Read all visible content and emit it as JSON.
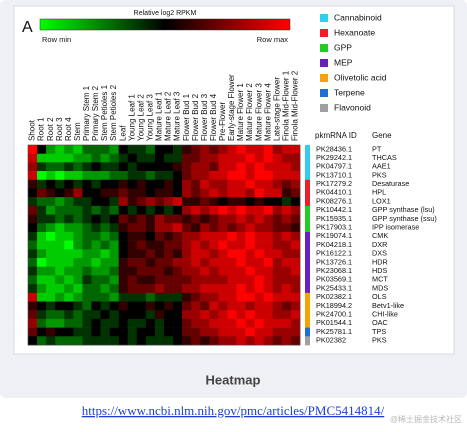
{
  "panel_label": "A",
  "chart_data": {
    "type": "heatmap",
    "colorbar": {
      "title": "Relative log2 RPKM",
      "min_label": "Row min",
      "max_label": "Row max"
    },
    "colors": {
      "low": "#00ff00",
      "mid": "#000000",
      "high": "#ff0000"
    },
    "zlim": [
      0,
      1
    ],
    "columns": [
      "Shoot",
      "Root 1",
      "Root 2",
      "Root 3",
      "Root 4",
      "Stem",
      "Primary Stem 1",
      "Primary Stem 2",
      "Stem Petioles 1",
      "Stem Petioles 2",
      "Leaf",
      "Young Leaf 1",
      "Young Leaf 2",
      "Young Leaf 3",
      "Mature Leaf 1",
      "Mature Leaf 2",
      "Mature Leaf 3",
      "Flower Bud 1",
      "Flower Bud 2",
      "Flower Bud 3",
      "Flower Bud 4",
      "Pre-Flower",
      "Early-stage Flower",
      "Mature Flower 1",
      "Mature Flower 2",
      "Mature Flower 3",
      "Mature Flower 4",
      "Late-stage Flower",
      "Finola Mid-Flower 1",
      "Finola Mid-Flower 2"
    ],
    "row_header": {
      "id": "pkmRNA ID",
      "gene": "Gene"
    },
    "groups": [
      {
        "name": "Cannabinoid",
        "color": "#33ccee"
      },
      {
        "name": "Hexanoate",
        "color": "#e8202a"
      },
      {
        "name": "GPP",
        "color": "#22cc22"
      },
      {
        "name": "MEP",
        "color": "#6a1fc0"
      },
      {
        "name": "Olivetolic acid",
        "color": "#f5a300"
      },
      {
        "name": "Terpene",
        "color": "#1f6fd0"
      },
      {
        "name": "Flavonoid",
        "color": "#a0a0a0"
      }
    ],
    "rows": [
      {
        "id": "PK28436.1",
        "gene": "PT",
        "group": "Cannabinoid"
      },
      {
        "id": "PK29242.1",
        "gene": "THCAS",
        "group": "Cannabinoid"
      },
      {
        "id": "PK04797.1",
        "gene": "AAE1",
        "group": "Cannabinoid"
      },
      {
        "id": "PK13710.1",
        "gene": "PKS",
        "group": "Cannabinoid"
      },
      {
        "id": "PK17279.2",
        "gene": "Desaturase",
        "group": "Hexanoate"
      },
      {
        "id": "PK04410.1",
        "gene": "HPL",
        "group": "Hexanoate"
      },
      {
        "id": "PK08276.1",
        "gene": "LOX1",
        "group": "Hexanoate"
      },
      {
        "id": "PK10442.1",
        "gene": "GPP synthase (lsu)",
        "group": "GPP"
      },
      {
        "id": "PK15935.1",
        "gene": "GPP synthase (ssu)",
        "group": "GPP"
      },
      {
        "id": "PK17903.1",
        "gene": "IPP isomerase",
        "group": "GPP"
      },
      {
        "id": "PK19074.1",
        "gene": "CMK",
        "group": "MEP"
      },
      {
        "id": "PK04218.1",
        "gene": "DXR",
        "group": "MEP"
      },
      {
        "id": "PK16122.1",
        "gene": "DXS",
        "group": "MEP"
      },
      {
        "id": "PK13726.1",
        "gene": "HDR",
        "group": "MEP"
      },
      {
        "id": "PK23068.1",
        "gene": "HDS",
        "group": "MEP"
      },
      {
        "id": "PK03569.1",
        "gene": "MCT",
        "group": "MEP"
      },
      {
        "id": "PK25433.1",
        "gene": "MDS",
        "group": "MEP"
      },
      {
        "id": "PK02382.1",
        "gene": "OLS",
        "group": "Olivetolic acid"
      },
      {
        "id": "PK18994.2",
        "gene": "Betv1-like",
        "group": "Olivetolic acid"
      },
      {
        "id": "PK24700.1",
        "gene": "CHI-like",
        "group": "Olivetolic acid"
      },
      {
        "id": "PK01544.1",
        "gene": "OAC",
        "group": "Olivetolic acid"
      },
      {
        "id": "PK25781.1",
        "gene": "TPS",
        "group": "Terpene"
      },
      {
        "id": "PK02382",
        "gene": "PKS",
        "group": "Flavonoid"
      }
    ],
    "values": [
      [
        1,
        0.5,
        0.2,
        0.1,
        0.2,
        0.1,
        0.3,
        0.3,
        0.3,
        0.2,
        0.5,
        0.4,
        0.4,
        0.3,
        0.5,
        0.5,
        0.4,
        0.6,
        0.7,
        0.8,
        0.7,
        0.8,
        0.9,
        1,
        0.9,
        0.9,
        1,
        0.8,
        0.9,
        0.9
      ],
      [
        0.9,
        0.1,
        0.1,
        0.1,
        0.1,
        0.2,
        0.2,
        0.3,
        0.2,
        0.3,
        0.4,
        0.5,
        0.4,
        0.4,
        0.5,
        0.4,
        0.4,
        0.7,
        0.7,
        0.8,
        0.8,
        0.9,
        0.9,
        0.9,
        1,
        0.9,
        1,
        0.9,
        0.8,
        0.8
      ],
      [
        0.8,
        0.4,
        0.3,
        0.3,
        0.4,
        0.3,
        0.4,
        0.5,
        0.4,
        0.4,
        0.5,
        0.4,
        0.5,
        0.5,
        0.5,
        0.5,
        0.6,
        0.7,
        0.8,
        0.8,
        0.7,
        0.9,
        0.9,
        1,
        0.9,
        1,
        0.9,
        0.9,
        0.9,
        0.8
      ],
      [
        0.9,
        0,
        0.1,
        0,
        0.1,
        0.1,
        0.2,
        0.2,
        0.2,
        0.3,
        0.3,
        0.4,
        0.4,
        0.3,
        0.4,
        0.4,
        0.5,
        0.7,
        0.8,
        0.8,
        0.9,
        0.9,
        1,
        1,
        0.9,
        1,
        1,
        0.9,
        0.9,
        0.9
      ],
      [
        0.6,
        0.4,
        0.5,
        0.4,
        0.5,
        0.4,
        0.5,
        0.4,
        0.5,
        0.5,
        0.6,
        0.5,
        0.6,
        0.5,
        0.5,
        0.6,
        0.5,
        0.8,
        0.7,
        0.9,
        0.8,
        0.8,
        0.9,
        0.9,
        1,
        0.9,
        0.9,
        0.8,
        0.7,
        0.8
      ],
      [
        0.5,
        0.7,
        0.6,
        0.5,
        0.6,
        0.8,
        0.5,
        0.5,
        0.6,
        0.6,
        0.7,
        0.6,
        0.6,
        0.5,
        0.6,
        0.6,
        0.5,
        0.8,
        0.7,
        0.8,
        0.9,
        0.8,
        0.9,
        0.9,
        0.8,
        1,
        0.9,
        0.9,
        0.6,
        0.7
      ],
      [
        0.4,
        0.3,
        0.3,
        0.2,
        0.3,
        0.4,
        0.4,
        0.5,
        0.5,
        0.4,
        0.8,
        0.6,
        0.7,
        0.8,
        0.7,
        0.8,
        0.9,
        0.6,
        0.6,
        0.7,
        0.6,
        0.5,
        0.6,
        0.6,
        0.5,
        0.6,
        0.5,
        0.5,
        0.4,
        0.5
      ],
      [
        0.7,
        0.4,
        0.2,
        0.3,
        0.3,
        0.3,
        0.4,
        0.3,
        0.4,
        0.3,
        0.5,
        0.4,
        0.5,
        0.4,
        0.5,
        0.4,
        0.5,
        0.8,
        0.9,
        0.8,
        0.9,
        1,
        0.9,
        1,
        0.9,
        0.9,
        1,
        0.8,
        0.9,
        0.8
      ],
      [
        0.6,
        0.4,
        0.4,
        0.3,
        0.4,
        0.3,
        0.4,
        0.5,
        0.4,
        0.5,
        0.7,
        0.6,
        0.7,
        0.6,
        0.8,
        0.7,
        0.7,
        0.6,
        0.7,
        0.6,
        0.7,
        0.8,
        0.8,
        0.9,
        0.8,
        0.9,
        0.8,
        0.7,
        0.8,
        0.7
      ],
      [
        0.5,
        0.3,
        0.2,
        0.1,
        0.2,
        0.2,
        0.3,
        0.4,
        0.3,
        0.4,
        0.6,
        0.7,
        0.7,
        0.6,
        0.8,
        0.8,
        0.9,
        0.7,
        0.6,
        0.8,
        0.7,
        0.8,
        0.7,
        0.8,
        0.9,
        0.8,
        0.8,
        0.7,
        0.7,
        0.6
      ],
      [
        0.4,
        0.1,
        0,
        0.1,
        0.1,
        0.2,
        0.3,
        0.3,
        0.2,
        0.3,
        0.5,
        0.6,
        0.6,
        0.5,
        0.7,
        0.6,
        0.7,
        0.8,
        0.8,
        0.9,
        0.9,
        0.9,
        1,
        0.9,
        1,
        0.9,
        0.9,
        0.8,
        0.9,
        0.8
      ],
      [
        0.3,
        0.1,
        0.1,
        0.1,
        0,
        0.2,
        0.3,
        0.2,
        0.3,
        0.2,
        0.5,
        0.6,
        0.7,
        0.6,
        0.6,
        0.7,
        0.7,
        0.8,
        0.9,
        0.8,
        0.9,
        1,
        0.9,
        0.9,
        1,
        0.9,
        0.9,
        0.8,
        0.8,
        0.9
      ],
      [
        0.4,
        0.2,
        0.1,
        0.1,
        0.1,
        0.1,
        0.2,
        0.2,
        0.1,
        0.2,
        0.5,
        0.6,
        0.6,
        0.7,
        0.6,
        0.7,
        0.6,
        0.8,
        0.9,
        0.9,
        0.8,
        0.9,
        1,
        1,
        0.9,
        1,
        0.9,
        0.9,
        0.8,
        0.8
      ],
      [
        0.3,
        0,
        0.1,
        0.1,
        0.1,
        0.2,
        0.2,
        0.1,
        0.2,
        0.2,
        0.6,
        0.7,
        0.7,
        0.6,
        0.7,
        0.7,
        0.8,
        0.8,
        0.9,
        0.8,
        0.9,
        0.9,
        0.9,
        1,
        0.9,
        0.9,
        1,
        0.8,
        0.9,
        0.9
      ],
      [
        0.4,
        0.2,
        0.2,
        0.1,
        0.2,
        0.2,
        0.3,
        0.2,
        0.2,
        0.3,
        0.6,
        0.6,
        0.7,
        0.7,
        0.7,
        0.6,
        0.7,
        0.8,
        0.8,
        0.9,
        0.8,
        0.9,
        0.9,
        0.9,
        1,
        0.9,
        0.9,
        0.8,
        0.8,
        0.9
      ],
      [
        0.3,
        0.1,
        0.1,
        0.2,
        0.1,
        0.2,
        0.4,
        0.3,
        0.3,
        0.2,
        0.6,
        0.7,
        0.6,
        0.6,
        0.7,
        0.7,
        0.7,
        0.7,
        0.8,
        0.8,
        0.8,
        0.8,
        0.9,
        0.9,
        0.9,
        1,
        0.9,
        0.8,
        0.8,
        0.8
      ],
      [
        0.4,
        0.2,
        0.1,
        0.1,
        0.2,
        0.1,
        0.3,
        0.3,
        0.2,
        0.3,
        0.6,
        0.7,
        0.7,
        0.7,
        0.8,
        0.7,
        0.7,
        0.8,
        0.8,
        0.9,
        0.9,
        0.9,
        0.9,
        1,
        0.9,
        1,
        0.9,
        0.8,
        0.9,
        0.8
      ],
      [
        0.9,
        0.1,
        0.1,
        0.2,
        0.1,
        0.2,
        0.3,
        0.3,
        0.3,
        0.2,
        0.4,
        0.4,
        0.4,
        0.3,
        0.4,
        0.4,
        0.4,
        0.6,
        0.7,
        0.8,
        0.8,
        0.9,
        0.9,
        1,
        1,
        0.9,
        1,
        0.9,
        0.9,
        0.9
      ],
      [
        0.6,
        0.5,
        0.4,
        0.5,
        0.5,
        0.4,
        0.3,
        0.5,
        0.4,
        0.5,
        0.6,
        0.5,
        0.5,
        0.6,
        0.5,
        0.6,
        0.5,
        0.7,
        0.8,
        0.7,
        0.9,
        0.8,
        0.9,
        0.9,
        0.8,
        0.9,
        0.9,
        0.8,
        0.7,
        0.8
      ],
      [
        0.7,
        0.4,
        0.3,
        0.3,
        0.4,
        0.3,
        0.4,
        0.4,
        0.5,
        0.4,
        0.5,
        0.5,
        0.5,
        0.4,
        0.6,
        0.5,
        0.5,
        0.8,
        0.8,
        0.9,
        0.8,
        0.9,
        1,
        0.9,
        1,
        0.9,
        0.9,
        0.8,
        0.8,
        0.9
      ],
      [
        0.8,
        0.3,
        0.2,
        0.2,
        0.3,
        0.3,
        0.4,
        0.5,
        0.4,
        0.4,
        0.5,
        0.4,
        0.4,
        0.5,
        0.4,
        0.5,
        0.5,
        0.7,
        0.8,
        0.8,
        0.9,
        0.9,
        0.9,
        1,
        0.9,
        1,
        0.9,
        0.9,
        0.9,
        0.8
      ],
      [
        0.7,
        0.5,
        0.6,
        0.5,
        0.5,
        0.4,
        0.4,
        0.5,
        0.4,
        0.5,
        0.5,
        0.4,
        0.5,
        0.5,
        0.4,
        0.5,
        0.5,
        0.7,
        0.7,
        0.8,
        0.8,
        0.9,
        0.9,
        0.9,
        1,
        0.9,
        0.9,
        0.8,
        0.8,
        0.8
      ],
      [
        0.5,
        0.3,
        0.4,
        0.3,
        0.3,
        0.3,
        0.4,
        0.4,
        0.4,
        0.4,
        0.5,
        0.4,
        0.5,
        0.4,
        0.4,
        0.4,
        0.5,
        0.6,
        0.7,
        0.6,
        0.7,
        0.8,
        0.8,
        0.9,
        0.8,
        0.9,
        0.8,
        0.7,
        0.8,
        0.7
      ]
    ]
  },
  "caption": "Heatmap",
  "url": "https://www.ncbi.nlm.nih.gov/pmc/articles/PMC5414814/",
  "watermark": "@稀土掘金技术社区"
}
